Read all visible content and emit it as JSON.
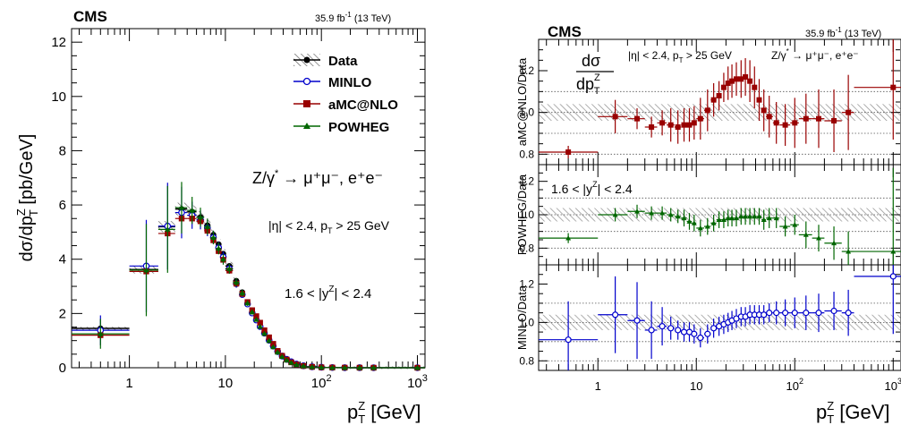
{
  "left": {
    "cms": "CMS",
    "lumi": "35.9 fb",
    "lumi_exp": "-1",
    "energy": " (13 TeV)",
    "ylabel": "dσ/dp",
    "ylabel_sup": "Z",
    "ylabel_sub": "T",
    "ylabel_unit": " [pb/GeV]",
    "process": "Z/γ",
    "process_star": "*",
    "process_rest": " → μ⁺μ⁻, e⁺e⁻",
    "cut_eta": "|η| < 2.4, p",
    "cut_eta_sub": "T",
    "cut_eta_rest": " > 25 GeV",
    "rapidity": "1.6 < |y",
    "rapidity_sup": "Z",
    "rapidity_rest": "| < 2.4",
    "legend": [
      "Data",
      "MINLO",
      "aMC@NLO",
      "POWHEG"
    ]
  },
  "right": {
    "cms": "CMS",
    "lumi": "35.9 fb",
    "lumi_exp": "-1",
    "energy": " (13 TeV)",
    "frac_num": "dσ",
    "frac_den": "dp",
    "frac_den_sup": "Z",
    "frac_den_sub": "T",
    "cut": "|η| < 2.4, p",
    "cut_sub": "T",
    "cut_rest": " > 25 GeV",
    "process": "Z/γ",
    "process_star": "*",
    "process_rest": " → μ⁺μ⁻, e⁺e⁻",
    "rapidity": "1.6 < |y",
    "rapidity_sup": "Z",
    "rapidity_rest": "| < 2.4",
    "panel_labels": [
      "aMC@NLO/Data",
      "POWHEG/Data",
      "MINLO/Data"
    ]
  },
  "xlabel": "p",
  "xlabel_sup": "Z",
  "xlabel_sub": "T",
  "xlabel_unit": " [GeV]",
  "colors": {
    "data": "#000000",
    "minlo": "#0000cc",
    "amcnlo": "#990000",
    "powheg": "#006600",
    "band": "#888888"
  },
  "chart_data": [
    {
      "type": "scatter",
      "title": "",
      "xlabel": "p_T^Z [GeV]",
      "ylabel": "dσ/dp_T^Z [pb/GeV]",
      "xscale": "log",
      "xlim": [
        0.25,
        1200
      ],
      "ylim": [
        0,
        12.5
      ],
      "legend_position": "top-right",
      "x": [
        0.5,
        1.5,
        2.5,
        3.5,
        4.5,
        5.5,
        6.5,
        7.5,
        8.5,
        9.5,
        11,
        13,
        15,
        17,
        19,
        21,
        23,
        25.5,
        28.5,
        31.5,
        35,
        39,
        43.5,
        48.5,
        55,
        65,
        80,
        100,
        130,
        175,
        250,
        350,
        1000
      ],
      "x_bins": [
        [
          0.25,
          1.0
        ],
        [
          1.0,
          2.0
        ],
        [
          2.0,
          3.0
        ],
        [
          3.0,
          4.0
        ],
        [
          4.0,
          5.0
        ],
        [
          5.0,
          6.0
        ],
        [
          6.0,
          7.0
        ],
        [
          7.0,
          8.0
        ],
        [
          8.0,
          9.0
        ],
        [
          9.0,
          10.0
        ],
        [
          10,
          12
        ],
        [
          12,
          14
        ],
        [
          14,
          16
        ],
        [
          16,
          18
        ],
        [
          18,
          20
        ],
        [
          20,
          22
        ],
        [
          22,
          24
        ],
        [
          24,
          27
        ],
        [
          27,
          30
        ],
        [
          30,
          33
        ],
        [
          33,
          37
        ],
        [
          37,
          41
        ],
        [
          41,
          46
        ],
        [
          46,
          51
        ],
        [
          51,
          60
        ],
        [
          60,
          70
        ],
        [
          70,
          90
        ],
        [
          90,
          110
        ],
        [
          110,
          150
        ],
        [
          150,
          200
        ],
        [
          200,
          300
        ],
        [
          300,
          400
        ],
        [
          400,
          1200
        ]
      ],
      "series": [
        {
          "name": "Data",
          "values": [
            1.45,
            3.62,
            5.2,
            5.85,
            5.75,
            5.55,
            5.25,
            4.9,
            4.55,
            4.2,
            3.75,
            3.2,
            2.78,
            2.4,
            2.05,
            1.78,
            1.52,
            1.26,
            1.0,
            0.78,
            0.58,
            0.42,
            0.3,
            0.21,
            0.13,
            0.07,
            0.035,
            0.017,
            0.008,
            0.003,
            0.001,
            0.0004,
            1e-05
          ]
        },
        {
          "name": "MINLO",
          "values": [
            1.38,
            3.75,
            5.22,
            5.72,
            5.62,
            5.45,
            5.15,
            4.8,
            4.42,
            4.08,
            3.65,
            3.1,
            2.7,
            2.35,
            2.02,
            1.76,
            1.52,
            1.28,
            1.02,
            0.8,
            0.6,
            0.43,
            0.31,
            0.22,
            0.135,
            0.073,
            0.036,
            0.018,
            0.0085,
            0.0032,
            0.001,
            0.0004,
            1e-05
          ]
        },
        {
          "name": "aMC@NLO",
          "values": [
            1.2,
            3.55,
            4.95,
            5.5,
            5.5,
            5.4,
            5.05,
            4.7,
            4.3,
            3.98,
            3.58,
            3.1,
            2.72,
            2.42,
            2.12,
            1.9,
            1.66,
            1.38,
            1.12,
            0.88,
            0.62,
            0.44,
            0.3,
            0.2,
            0.12,
            0.065,
            0.032,
            0.016,
            0.0078,
            0.0029,
            0.001,
            0.0004,
            1e-05
          ]
        },
        {
          "name": "POWHEG",
          "values": [
            1.25,
            3.6,
            5.1,
            5.9,
            5.8,
            5.55,
            5.2,
            4.8,
            4.4,
            4.0,
            3.65,
            3.15,
            2.75,
            2.38,
            2.05,
            1.78,
            1.52,
            1.26,
            1.0,
            0.77,
            0.57,
            0.41,
            0.28,
            0.19,
            0.115,
            0.062,
            0.03,
            0.015,
            0.0072,
            0.0027,
            0.0009,
            0.0003,
            1e-05
          ]
        }
      ],
      "model_errors": [
        0.55,
        1.7,
        1.6,
        0.95,
        0.5,
        0.35,
        0.3,
        0.25,
        0.22,
        0.2,
        0.18,
        0.15,
        0.12,
        0.1,
        0.09,
        0.08,
        0.07,
        0.06,
        0.05,
        0.04,
        0.03,
        0.02,
        0.015,
        0.01,
        0.008,
        0.005,
        0.003,
        0.002,
        0.001,
        0.0005,
        0.0002,
        0.0001,
        1e-05
      ]
    },
    {
      "type": "scatter",
      "title": "",
      "xlabel": "p_T^Z [GeV]",
      "ylabel": "aMC@NLO/Data",
      "xscale": "log",
      "xlim": [
        0.25,
        1200
      ],
      "ylim": [
        0.75,
        1.35
      ],
      "band": [
        0.96,
        1.04
      ],
      "x": [
        0.5,
        1.5,
        2.5,
        3.5,
        4.5,
        5.5,
        6.5,
        7.5,
        8.5,
        9.5,
        11,
        13,
        15,
        17,
        19,
        21,
        23,
        25.5,
        28.5,
        31.5,
        35,
        39,
        43.5,
        48.5,
        55,
        65,
        80,
        100,
        130,
        175,
        250,
        350,
        1000
      ],
      "values": [
        0.81,
        0.98,
        0.97,
        0.93,
        0.95,
        0.94,
        0.93,
        0.94,
        0.94,
        0.95,
        0.97,
        1.01,
        1.06,
        1.08,
        1.12,
        1.14,
        1.15,
        1.16,
        1.16,
        1.17,
        1.15,
        1.12,
        1.06,
        1.01,
        0.98,
        0.95,
        0.94,
        0.95,
        0.97,
        0.97,
        0.96,
        1.0,
        1.12
      ],
      "errors": [
        0.03,
        0.08,
        0.05,
        0.05,
        0.06,
        0.08,
        0.08,
        0.08,
        0.08,
        0.08,
        0.1,
        0.1,
        0.08,
        0.07,
        0.07,
        0.08,
        0.08,
        0.08,
        0.09,
        0.09,
        0.1,
        0.1,
        0.1,
        0.1,
        0.1,
        0.1,
        0.1,
        0.12,
        0.12,
        0.14,
        0.15,
        0.18,
        0.25
      ]
    },
    {
      "type": "scatter",
      "title": "",
      "xlabel": "p_T^Z [GeV]",
      "ylabel": "POWHEG/Data",
      "xscale": "log",
      "xlim": [
        0.25,
        1200
      ],
      "ylim": [
        0.7,
        1.3
      ],
      "band": [
        0.96,
        1.04
      ],
      "x": [
        0.5,
        1.5,
        2.5,
        3.5,
        4.5,
        5.5,
        6.5,
        7.5,
        8.5,
        9.5,
        11,
        13,
        15,
        17,
        19,
        21,
        23,
        25.5,
        28.5,
        31.5,
        35,
        39,
        43.5,
        48.5,
        55,
        65,
        80,
        100,
        130,
        175,
        250,
        350,
        1000
      ],
      "values": [
        0.86,
        1.0,
        1.02,
        1.01,
        1.01,
        1.0,
        0.99,
        0.98,
        0.96,
        0.95,
        0.92,
        0.93,
        0.95,
        0.97,
        0.97,
        0.98,
        0.98,
        0.98,
        0.99,
        0.99,
        0.99,
        0.99,
        0.99,
        0.97,
        0.98,
        0.98,
        0.93,
        0.94,
        0.88,
        0.86,
        0.83,
        0.78,
        0.78
      ],
      "errors": [
        0.03,
        0.04,
        0.04,
        0.04,
        0.04,
        0.04,
        0.04,
        0.05,
        0.05,
        0.05,
        0.05,
        0.05,
        0.05,
        0.05,
        0.05,
        0.05,
        0.05,
        0.05,
        0.05,
        0.05,
        0.05,
        0.05,
        0.05,
        0.06,
        0.06,
        0.06,
        0.06,
        0.06,
        0.08,
        0.08,
        0.1,
        0.12,
        0.5
      ]
    },
    {
      "type": "scatter",
      "title": "",
      "xlabel": "p_T^Z [GeV]",
      "ylabel": "MINLO/Data",
      "xscale": "log",
      "xlim": [
        0.25,
        1200
      ],
      "ylim": [
        0.75,
        1.3
      ],
      "band": [
        0.96,
        1.04
      ],
      "x": [
        0.5,
        1.5,
        2.5,
        3.5,
        4.5,
        5.5,
        6.5,
        7.5,
        8.5,
        9.5,
        11,
        13,
        15,
        17,
        19,
        21,
        23,
        25.5,
        28.5,
        31.5,
        35,
        39,
        43.5,
        48.5,
        55,
        65,
        80,
        100,
        130,
        175,
        250,
        350,
        1000
      ],
      "values": [
        0.91,
        1.04,
        1.01,
        0.96,
        0.98,
        0.97,
        0.96,
        0.95,
        0.95,
        0.94,
        0.92,
        0.94,
        0.97,
        0.98,
        0.99,
        1.0,
        1.01,
        1.02,
        1.03,
        1.03,
        1.04,
        1.04,
        1.04,
        1.04,
        1.05,
        1.05,
        1.05,
        1.05,
        1.05,
        1.05,
        1.06,
        1.05,
        1.24
      ],
      "errors": [
        0.2,
        0.2,
        0.2,
        0.15,
        0.1,
        0.06,
        0.05,
        0.05,
        0.05,
        0.05,
        0.05,
        0.05,
        0.05,
        0.05,
        0.05,
        0.05,
        0.05,
        0.05,
        0.05,
        0.05,
        0.05,
        0.05,
        0.05,
        0.05,
        0.05,
        0.06,
        0.07,
        0.08,
        0.09,
        0.1,
        0.1,
        0.12,
        0.3
      ]
    }
  ]
}
